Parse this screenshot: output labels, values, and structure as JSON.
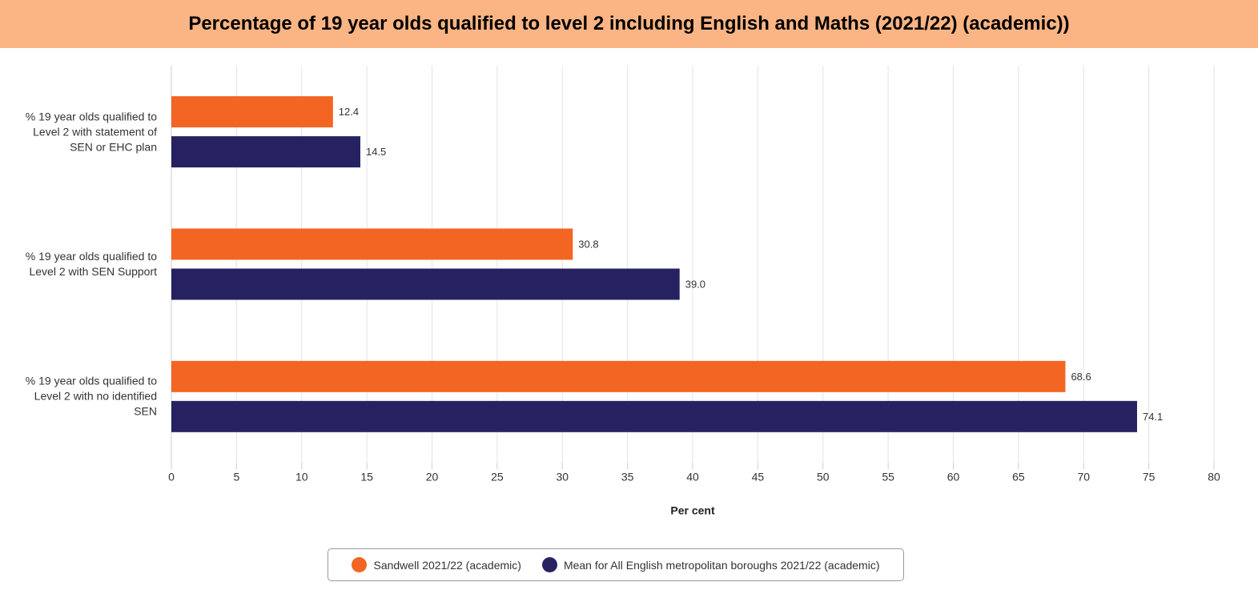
{
  "chart_data": {
    "type": "bar",
    "orientation": "horizontal",
    "title": "Percentage of 19 year olds qualified to level 2 including English and Maths (2021/22) (academic))",
    "x_label": "Per cent",
    "categories": [
      "% 19 year olds qualified to Level 2 with statement of SEN or EHC plan",
      "% 19 year olds qualified to Level 2 with SEN Support",
      "% 19 year olds qualified to Level 2 with no identified SEN"
    ],
    "series": [
      {
        "name": "Sandwell 2021/22 (academic)",
        "color": "#f26522",
        "values": [
          12.4,
          30.8,
          68.6
        ],
        "value_labels": [
          "12.4",
          "30.8",
          "68.6"
        ]
      },
      {
        "name": "Mean for All English metropolitan boroughs 2021/22 (academic)",
        "color": "#262262",
        "values": [
          14.5,
          39,
          74.1
        ],
        "value_labels": [
          "14.5",
          "39.0",
          "74.1"
        ]
      }
    ],
    "xlim": [
      0,
      80
    ],
    "xticks": [
      0,
      5,
      10,
      15,
      20,
      25,
      30,
      35,
      40,
      45,
      50,
      55,
      60,
      65,
      70,
      75,
      80
    ],
    "grid": true,
    "legend": "bottom"
  }
}
